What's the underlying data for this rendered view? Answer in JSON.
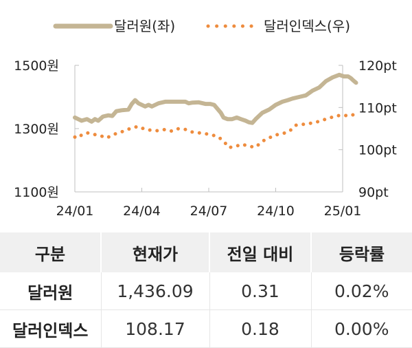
{
  "legend": {
    "dollar_won": "달러원(좌)",
    "dollar_index": "달러인덱스(우)"
  },
  "chart_data": {
    "type": "line",
    "x_ticks": [
      "24/01",
      "24/04",
      "24/07",
      "24/10",
      "25/01"
    ],
    "y_left": {
      "ticks": [
        "1500원",
        "1300원",
        "1100원"
      ],
      "range": [
        1100,
        1500
      ]
    },
    "y_right": {
      "ticks": [
        "120pt",
        "110pt",
        "100pt",
        "90pt"
      ],
      "range": [
        90,
        120
      ]
    },
    "series": [
      {
        "name": "달러원(좌)",
        "axis": "left",
        "color": "#c4b594",
        "style": "solid",
        "points": [
          [
            0.0,
            1335
          ],
          [
            0.05,
            1330
          ],
          [
            0.1,
            1325
          ],
          [
            0.18,
            1330
          ],
          [
            0.25,
            1322
          ],
          [
            0.3,
            1330
          ],
          [
            0.35,
            1325
          ],
          [
            0.42,
            1338
          ],
          [
            0.5,
            1342
          ],
          [
            0.56,
            1340
          ],
          [
            0.62,
            1355
          ],
          [
            0.7,
            1358
          ],
          [
            0.8,
            1360
          ],
          [
            0.85,
            1378
          ],
          [
            0.9,
            1390
          ],
          [
            0.95,
            1380
          ],
          [
            1.0,
            1375
          ],
          [
            1.05,
            1370
          ],
          [
            1.1,
            1375
          ],
          [
            1.15,
            1370
          ],
          [
            1.25,
            1380
          ],
          [
            1.35,
            1385
          ],
          [
            1.45,
            1385
          ],
          [
            1.55,
            1385
          ],
          [
            1.65,
            1385
          ],
          [
            1.7,
            1380
          ],
          [
            1.75,
            1382
          ],
          [
            1.85,
            1383
          ],
          [
            1.95,
            1378
          ],
          [
            2.02,
            1378
          ],
          [
            2.08,
            1375
          ],
          [
            2.12,
            1365
          ],
          [
            2.18,
            1350
          ],
          [
            2.22,
            1335
          ],
          [
            2.28,
            1330
          ],
          [
            2.35,
            1330
          ],
          [
            2.42,
            1335
          ],
          [
            2.48,
            1330
          ],
          [
            2.55,
            1325
          ],
          [
            2.6,
            1320
          ],
          [
            2.65,
            1318
          ],
          [
            2.7,
            1330
          ],
          [
            2.8,
            1350
          ],
          [
            2.9,
            1360
          ],
          [
            3.0,
            1375
          ],
          [
            3.1,
            1385
          ],
          [
            3.18,
            1390
          ],
          [
            3.25,
            1395
          ],
          [
            3.35,
            1400
          ],
          [
            3.45,
            1405
          ],
          [
            3.55,
            1420
          ],
          [
            3.65,
            1430
          ],
          [
            3.75,
            1450
          ],
          [
            3.85,
            1462
          ],
          [
            3.95,
            1470
          ],
          [
            4.02,
            1465
          ],
          [
            4.08,
            1465
          ],
          [
            4.12,
            1460
          ],
          [
            4.16,
            1452
          ],
          [
            4.2,
            1445
          ]
        ]
      },
      {
        "name": "달러인덱스(우)",
        "axis": "right",
        "color": "#ee8c3e",
        "style": "dotted",
        "points": [
          [
            0.0,
            103.0
          ],
          [
            0.05,
            102.8
          ],
          [
            0.1,
            103.5
          ],
          [
            0.18,
            104.0
          ],
          [
            0.25,
            103.8
          ],
          [
            0.32,
            103.5
          ],
          [
            0.4,
            103.2
          ],
          [
            0.48,
            102.8
          ],
          [
            0.56,
            103.5
          ],
          [
            0.65,
            104.0
          ],
          [
            0.75,
            104.5
          ],
          [
            0.85,
            105.2
          ],
          [
            0.95,
            105.5
          ],
          [
            1.05,
            104.8
          ],
          [
            1.15,
            104.6
          ],
          [
            1.25,
            104.5
          ],
          [
            1.35,
            104.8
          ],
          [
            1.45,
            104.4
          ],
          [
            1.55,
            105.0
          ],
          [
            1.65,
            104.8
          ],
          [
            1.75,
            104.2
          ],
          [
            1.85,
            104.0
          ],
          [
            1.95,
            103.8
          ],
          [
            2.05,
            103.5
          ],
          [
            2.15,
            103.0
          ],
          [
            2.25,
            101.5
          ],
          [
            2.3,
            100.5
          ],
          [
            2.4,
            100.8
          ],
          [
            2.5,
            101.3
          ],
          [
            2.6,
            100.8
          ],
          [
            2.7,
            100.6
          ],
          [
            2.8,
            102.0
          ],
          [
            2.9,
            102.8
          ],
          [
            3.0,
            103.5
          ],
          [
            3.1,
            103.8
          ],
          [
            3.2,
            104.3
          ],
          [
            3.3,
            105.8
          ],
          [
            3.4,
            106.0
          ],
          [
            3.5,
            106.2
          ],
          [
            3.6,
            106.5
          ],
          [
            3.7,
            107.0
          ],
          [
            3.8,
            107.5
          ],
          [
            3.9,
            108.0
          ],
          [
            4.0,
            108.2
          ],
          [
            4.1,
            108.0
          ],
          [
            4.2,
            108.5
          ]
        ]
      }
    ]
  },
  "table": {
    "headers": [
      "구분",
      "현재가",
      "전일 대비",
      "등락률"
    ],
    "rows": [
      [
        "달러원",
        "1,436.09",
        "0.31",
        "0.02%"
      ],
      [
        "달러인덱스",
        "108.17",
        "0.18",
        "0.00%"
      ]
    ]
  }
}
